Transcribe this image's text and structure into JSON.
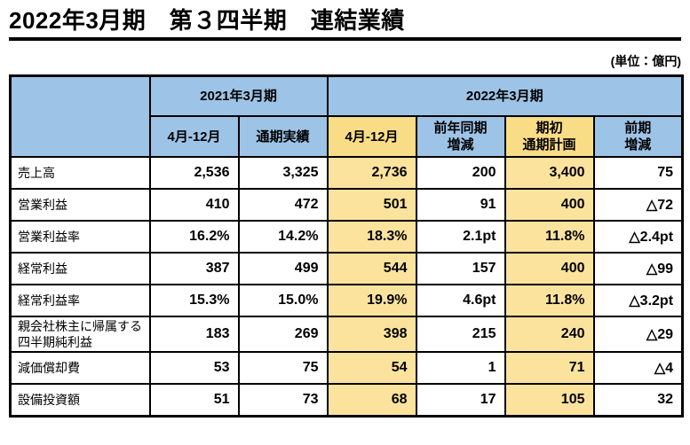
{
  "page": {
    "title": "2022年3月期　第３四半期　連結業績",
    "unit_label": "(単位：億円)"
  },
  "colors": {
    "header_blue": "#9DC3E6",
    "highlight_gold_header": "#F9DC86",
    "highlight_gold_body": "#FBE39D",
    "border": "#000000",
    "background": "#FFFFFF"
  },
  "table": {
    "col_groups": [
      {
        "label": "2021年3月期",
        "span": 2
      },
      {
        "label": "2022年3月期",
        "span": 4
      }
    ],
    "columns": [
      {
        "label": "4月-12月",
        "highlight": false
      },
      {
        "label": "通期実績",
        "highlight": false
      },
      {
        "label": "4月-12月",
        "highlight": true
      },
      {
        "label": "前年同期\n増減",
        "highlight": false
      },
      {
        "label": "期初\n通期計画",
        "highlight": true
      },
      {
        "label": "前期\n増減",
        "highlight": false
      }
    ],
    "rows": [
      {
        "label": "売上高",
        "values": [
          "2,536",
          "3,325",
          "2,736",
          "200",
          "3,400",
          "75"
        ]
      },
      {
        "label": "営業利益",
        "values": [
          "410",
          "472",
          "501",
          "91",
          "400",
          "△72"
        ]
      },
      {
        "label": "営業利益率",
        "values": [
          "16.2%",
          "14.2%",
          "18.3%",
          "2.1pt",
          "11.8%",
          "△2.4pt"
        ]
      },
      {
        "label": "経常利益",
        "values": [
          "387",
          "499",
          "544",
          "157",
          "400",
          "△99"
        ]
      },
      {
        "label": "経常利益率",
        "values": [
          "15.3%",
          "15.0%",
          "19.9%",
          "4.6pt",
          "11.8%",
          "△3.2pt"
        ]
      },
      {
        "label": "親会社株主に帰属する\n四半期純利益",
        "values": [
          "183",
          "269",
          "398",
          "215",
          "240",
          "△29"
        ]
      },
      {
        "label": "減価償却費",
        "values": [
          "53",
          "75",
          "54",
          "1",
          "71",
          "△4"
        ]
      },
      {
        "label": "設備投資額",
        "values": [
          "51",
          "73",
          "68",
          "17",
          "105",
          "32"
        ]
      }
    ]
  }
}
